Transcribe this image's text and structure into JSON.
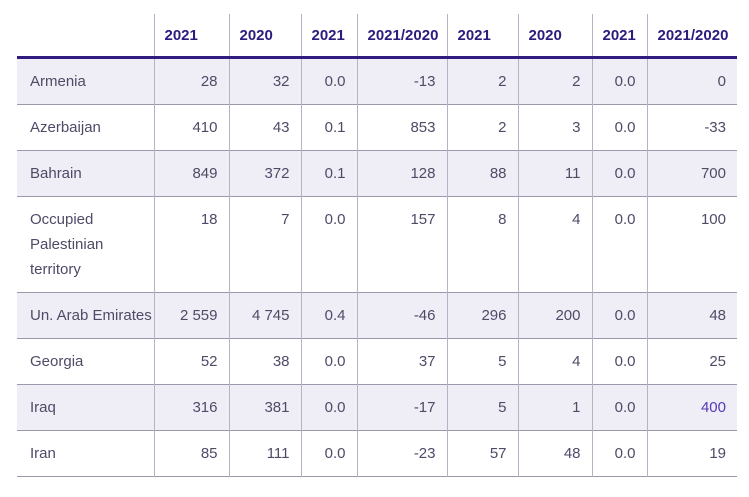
{
  "chart_data": {
    "type": "table",
    "title": "",
    "columns": [
      "",
      "2021",
      "2020",
      "2021",
      "2021/2020",
      "2021",
      "2020",
      "2021",
      "2021/2020"
    ],
    "rows": [
      {
        "country": "Armenia",
        "values": [
          "28",
          "32",
          "0.0",
          "-13",
          "2",
          "2",
          "0.0",
          "0"
        ]
      },
      {
        "country": "Azerbaijan",
        "values": [
          "410",
          "43",
          "0.1",
          "853",
          "2",
          "3",
          "0.0",
          "-33"
        ]
      },
      {
        "country": "Bahrain",
        "values": [
          "849",
          "372",
          "0.1",
          "128",
          "88",
          "11",
          "0.0",
          "700"
        ]
      },
      {
        "country": "Occupied Palestinian territory",
        "values": [
          "18",
          "7",
          "0.0",
          "157",
          "8",
          "4",
          "0.0",
          "100"
        ]
      },
      {
        "country": "Un. Arab Emirates",
        "values": [
          "2 559",
          "4 745",
          "0.4",
          "-46",
          "296",
          "200",
          "0.0",
          "48"
        ]
      },
      {
        "country": "Georgia",
        "values": [
          "52",
          "38",
          "0.0",
          "37",
          "5",
          "4",
          "0.0",
          "25"
        ]
      },
      {
        "country": "Iraq",
        "values": [
          "316",
          "381",
          "0.0",
          "-17",
          "5",
          "1",
          "0.0",
          "400"
        ]
      },
      {
        "country": "Iran",
        "values": [
          "85",
          "111",
          "0.0",
          "-23",
          "57",
          "48",
          "0.0",
          "19"
        ]
      }
    ],
    "layout": {
      "grid": "on",
      "alternating_row_shading": "odd rows shaded lavender",
      "numeric_alignment": "right",
      "header_rule": "thick purple line under header and thin gray lines between rows"
    }
  },
  "colors": {
    "header_text": "#2c1c7e",
    "header_rule": "#311b7e",
    "cell_text": "#4f4a66",
    "row_shaded_bg": "#efeef6",
    "row_plain_bg": "#ffffff",
    "column_separator": "#b5b2c6",
    "row_separator": "#9b98ac",
    "highlighted_value": "#5639b8"
  }
}
